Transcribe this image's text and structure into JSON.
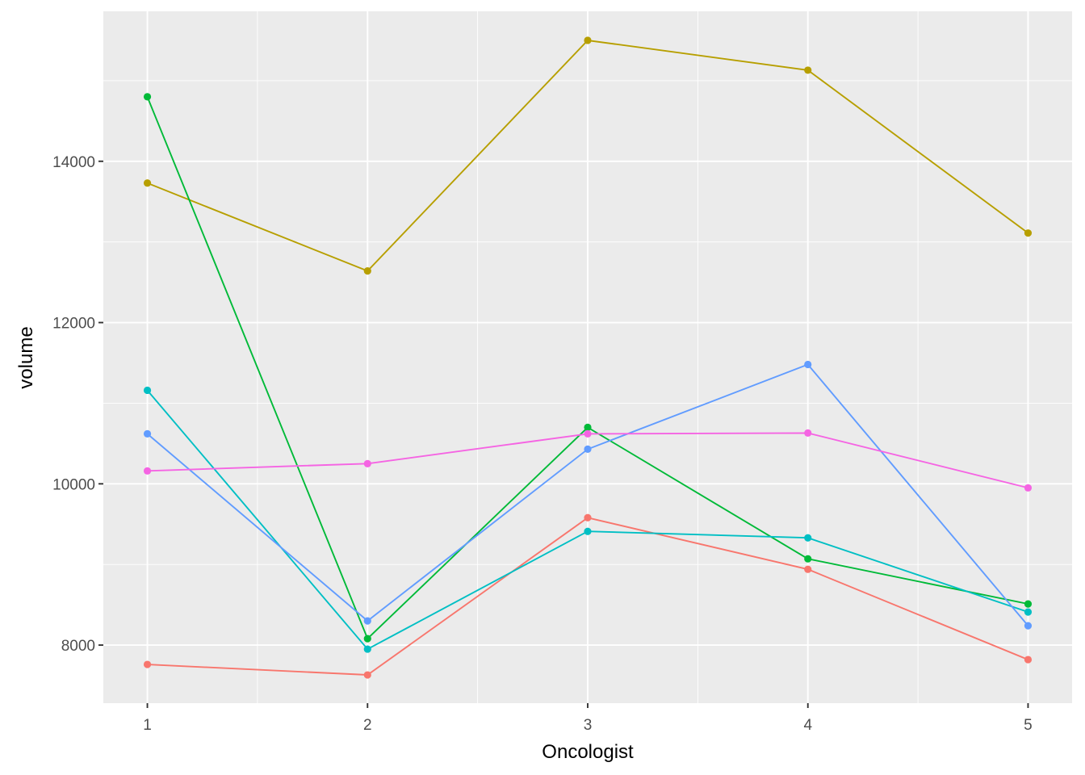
{
  "chart_data": {
    "type": "line",
    "title": "",
    "xlabel": "Oncologist",
    "ylabel": "volume",
    "x": [
      1,
      2,
      3,
      4,
      5
    ],
    "x_tick_labels": [
      "1",
      "2",
      "3",
      "4",
      "5"
    ],
    "xlim": [
      0.8,
      5.2
    ],
    "y_ticks": [
      8000,
      10000,
      12000,
      14000
    ],
    "y_tick_labels": [
      "8000",
      "10000",
      "12000",
      "14000"
    ],
    "ylim": [
      7280,
      15860
    ],
    "grid": true,
    "legend": "none",
    "panel_background": "#ebebeb",
    "grid_color": "#ffffff",
    "series": [
      {
        "color": "#f8766d",
        "values": [
          7760,
          7630,
          9580,
          8940,
          7820
        ]
      },
      {
        "color": "#b79f00",
        "values": [
          13730,
          12640,
          15500,
          15130,
          13110
        ]
      },
      {
        "color": "#00ba38",
        "values": [
          14800,
          8080,
          10700,
          9070,
          8510
        ]
      },
      {
        "color": "#00bfc4",
        "values": [
          11160,
          7950,
          9410,
          9330,
          8410
        ]
      },
      {
        "color": "#619cff",
        "values": [
          10620,
          8300,
          10430,
          11480,
          8240
        ]
      },
      {
        "color": "#f564e3",
        "values": [
          10160,
          10250,
          10620,
          10630,
          9950
        ]
      }
    ]
  }
}
